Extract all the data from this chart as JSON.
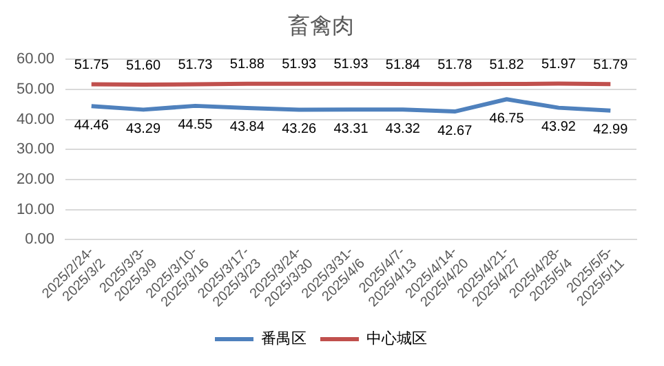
{
  "chart_data": {
    "type": "line",
    "title": "畜禽肉",
    "categories": [
      "2025/2/24-2025/3/2",
      "2025/3/3-2025/3/9",
      "2025/3/10-2025/3/16",
      "2025/3/17-2025/3/23",
      "2025/3/24-2025/3/30",
      "2025/3/31-2025/4/6",
      "2025/4/7-2025/4/13",
      "2025/4/14-2025/4/20",
      "2025/4/21-2025/4/27",
      "2025/4/28-2025/5/4",
      "2025/5/5-2025/5/11"
    ],
    "series": [
      {
        "name": "番禺区",
        "color": "#4f81bd",
        "values": [
          44.46,
          43.29,
          44.55,
          43.84,
          43.26,
          43.31,
          43.32,
          42.67,
          46.75,
          43.92,
          42.99
        ],
        "value_labels": [
          "44.46",
          "43.29",
          "44.55",
          "43.84",
          "43.26",
          "43.31",
          "43.32",
          "42.67",
          "46.75",
          "43.92",
          "42.99"
        ]
      },
      {
        "name": "中心城区",
        "color": "#c0504d",
        "values": [
          51.75,
          51.6,
          51.73,
          51.88,
          51.93,
          51.93,
          51.84,
          51.78,
          51.82,
          51.97,
          51.79
        ],
        "value_labels": [
          "51.75",
          "51.60",
          "51.73",
          "51.88",
          "51.93",
          "51.93",
          "51.84",
          "51.78",
          "51.82",
          "51.97",
          "51.79"
        ]
      }
    ],
    "ylim": [
      0,
      60
    ],
    "yticks": [
      {
        "value": 0,
        "label": "0.00"
      },
      {
        "value": 10,
        "label": "10.00"
      },
      {
        "value": 20,
        "label": "20.00"
      },
      {
        "value": 30,
        "label": "30.00"
      },
      {
        "value": 40,
        "label": "40.00"
      },
      {
        "value": 50,
        "label": "50.00"
      },
      {
        "value": 60,
        "label": "60.00"
      }
    ],
    "grid": "y",
    "legend": "bottom",
    "marker": "none",
    "line_style": "solid"
  }
}
